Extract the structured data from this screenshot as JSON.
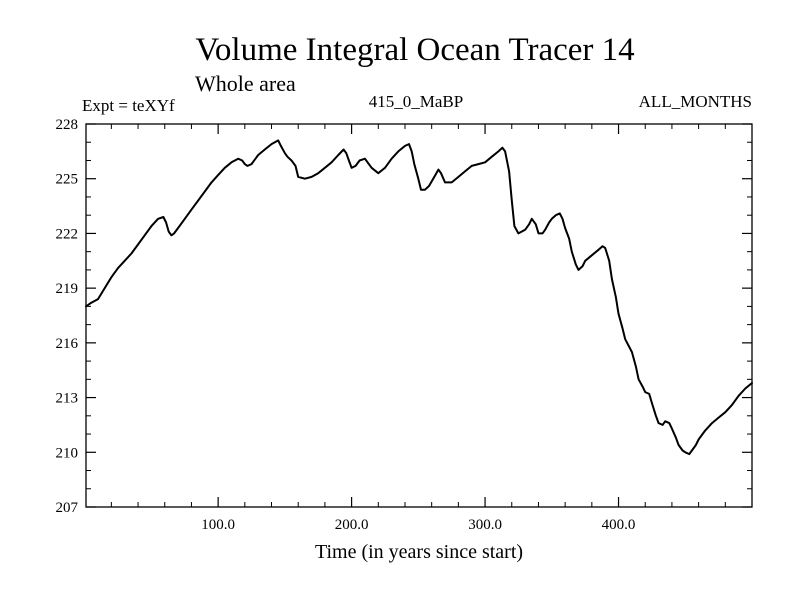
{
  "chart_data": {
    "type": "line",
    "title": "Volume Integral Ocean Tracer 14",
    "subtitle": "Whole area",
    "left_label": "Expt = teXYf",
    "center_label": "415_0_MaBP",
    "right_label": "ALL_MONTHS",
    "xlabel": "Time (in years since start)",
    "ylabel": "",
    "xlim": [
      1,
      500
    ],
    "ylim": [
      207,
      228
    ],
    "xticks": [
      100,
      200,
      300,
      400
    ],
    "xtick_labels": [
      "100.0",
      "200.0",
      "300.0",
      "400.0"
    ],
    "yticks": [
      207,
      210,
      213,
      216,
      219,
      222,
      225,
      228
    ],
    "ytick_labels": [
      "207",
      "210",
      "213",
      "216",
      "219",
      "222",
      "225",
      "228"
    ],
    "grid": false,
    "line_color": "#000000",
    "series": [
      {
        "x": [
          1,
          5,
          10,
          15,
          20,
          25,
          30,
          35,
          40,
          45,
          50,
          55,
          59,
          61,
          63,
          65,
          67,
          70,
          75,
          80,
          85,
          90,
          95,
          100,
          105,
          110,
          115,
          118,
          120,
          122,
          125,
          128,
          130,
          135,
          140,
          145,
          147,
          150,
          152,
          155,
          158,
          160,
          165,
          170,
          175,
          180,
          185,
          190,
          194,
          196,
          198,
          200,
          203,
          206,
          210,
          213,
          215,
          220,
          225,
          230,
          235,
          240,
          243,
          245,
          247,
          250,
          252,
          255,
          258,
          262,
          265,
          267,
          270,
          275,
          280,
          285,
          290,
          295,
          300,
          305,
          310,
          313,
          315,
          318,
          320,
          322,
          325,
          330,
          333,
          335,
          338,
          340,
          343,
          345,
          348,
          350,
          353,
          356,
          358,
          360,
          363,
          365,
          368,
          370,
          373,
          375,
          380,
          385,
          388,
          390,
          393,
          395,
          398,
          400,
          403,
          405,
          410,
          413,
          415,
          418,
          420,
          423,
          425,
          428,
          430,
          433,
          435,
          438,
          440,
          443,
          445,
          448,
          450,
          453,
          455,
          458,
          460,
          463,
          465,
          470,
          475,
          480,
          485,
          490,
          495,
          500
        ],
        "values": [
          218.0,
          218.2,
          218.4,
          219.0,
          219.6,
          220.1,
          220.5,
          220.9,
          221.4,
          221.9,
          222.4,
          222.8,
          222.9,
          222.6,
          222.1,
          221.9,
          222.0,
          222.3,
          222.8,
          223.3,
          223.8,
          224.3,
          224.8,
          225.2,
          225.6,
          225.9,
          226.1,
          226.0,
          225.8,
          225.7,
          225.8,
          226.1,
          226.3,
          226.6,
          226.9,
          227.1,
          226.8,
          226.4,
          226.2,
          226.0,
          225.7,
          225.1,
          225.0,
          225.1,
          225.3,
          225.6,
          225.9,
          226.3,
          226.6,
          226.4,
          226.0,
          225.6,
          225.7,
          226.0,
          226.1,
          225.8,
          225.6,
          225.3,
          225.6,
          226.1,
          226.5,
          226.8,
          226.9,
          226.5,
          225.8,
          225.0,
          224.4,
          224.4,
          224.6,
          225.1,
          225.5,
          225.3,
          224.8,
          224.8,
          225.1,
          225.4,
          225.7,
          225.8,
          225.9,
          226.2,
          226.5,
          226.7,
          226.5,
          225.4,
          223.8,
          222.4,
          222.0,
          222.2,
          222.5,
          222.8,
          222.5,
          222.0,
          222.0,
          222.2,
          222.6,
          222.8,
          223.0,
          223.1,
          222.8,
          222.3,
          221.7,
          221.0,
          220.3,
          220.0,
          220.2,
          220.5,
          220.8,
          221.1,
          221.3,
          221.2,
          220.5,
          219.5,
          218.5,
          217.6,
          216.8,
          216.2,
          215.5,
          214.7,
          214.0,
          213.6,
          213.3,
          213.2,
          212.7,
          212.0,
          211.6,
          211.5,
          211.7,
          211.6,
          211.3,
          210.8,
          210.4,
          210.1,
          210.0,
          209.9,
          210.1,
          210.4,
          210.7,
          211.0,
          211.2,
          211.6,
          211.9,
          212.2,
          212.6,
          213.1,
          213.5,
          213.8
        ]
      }
    ]
  }
}
